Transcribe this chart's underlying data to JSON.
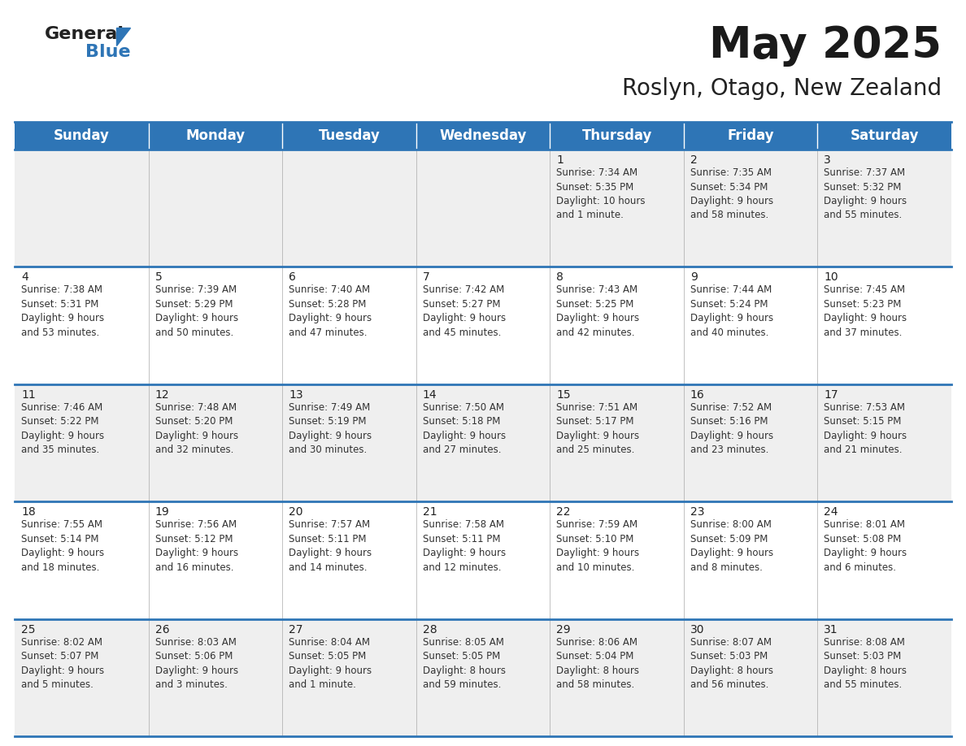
{
  "title": "May 2025",
  "subtitle": "Roslyn, Otago, New Zealand",
  "header_bg": "#2E75B6",
  "header_text": "#FFFFFF",
  "row_bg_light": "#EFEFEF",
  "row_bg_white": "#FFFFFF",
  "border_color": "#2E75B6",
  "day_headers": [
    "Sunday",
    "Monday",
    "Tuesday",
    "Wednesday",
    "Thursday",
    "Friday",
    "Saturday"
  ],
  "calendar": [
    [
      {
        "day": "",
        "info": ""
      },
      {
        "day": "",
        "info": ""
      },
      {
        "day": "",
        "info": ""
      },
      {
        "day": "",
        "info": ""
      },
      {
        "day": "1",
        "info": "Sunrise: 7:34 AM\nSunset: 5:35 PM\nDaylight: 10 hours\nand 1 minute."
      },
      {
        "day": "2",
        "info": "Sunrise: 7:35 AM\nSunset: 5:34 PM\nDaylight: 9 hours\nand 58 minutes."
      },
      {
        "day": "3",
        "info": "Sunrise: 7:37 AM\nSunset: 5:32 PM\nDaylight: 9 hours\nand 55 minutes."
      }
    ],
    [
      {
        "day": "4",
        "info": "Sunrise: 7:38 AM\nSunset: 5:31 PM\nDaylight: 9 hours\nand 53 minutes."
      },
      {
        "day": "5",
        "info": "Sunrise: 7:39 AM\nSunset: 5:29 PM\nDaylight: 9 hours\nand 50 minutes."
      },
      {
        "day": "6",
        "info": "Sunrise: 7:40 AM\nSunset: 5:28 PM\nDaylight: 9 hours\nand 47 minutes."
      },
      {
        "day": "7",
        "info": "Sunrise: 7:42 AM\nSunset: 5:27 PM\nDaylight: 9 hours\nand 45 minutes."
      },
      {
        "day": "8",
        "info": "Sunrise: 7:43 AM\nSunset: 5:25 PM\nDaylight: 9 hours\nand 42 minutes."
      },
      {
        "day": "9",
        "info": "Sunrise: 7:44 AM\nSunset: 5:24 PM\nDaylight: 9 hours\nand 40 minutes."
      },
      {
        "day": "10",
        "info": "Sunrise: 7:45 AM\nSunset: 5:23 PM\nDaylight: 9 hours\nand 37 minutes."
      }
    ],
    [
      {
        "day": "11",
        "info": "Sunrise: 7:46 AM\nSunset: 5:22 PM\nDaylight: 9 hours\nand 35 minutes."
      },
      {
        "day": "12",
        "info": "Sunrise: 7:48 AM\nSunset: 5:20 PM\nDaylight: 9 hours\nand 32 minutes."
      },
      {
        "day": "13",
        "info": "Sunrise: 7:49 AM\nSunset: 5:19 PM\nDaylight: 9 hours\nand 30 minutes."
      },
      {
        "day": "14",
        "info": "Sunrise: 7:50 AM\nSunset: 5:18 PM\nDaylight: 9 hours\nand 27 minutes."
      },
      {
        "day": "15",
        "info": "Sunrise: 7:51 AM\nSunset: 5:17 PM\nDaylight: 9 hours\nand 25 minutes."
      },
      {
        "day": "16",
        "info": "Sunrise: 7:52 AM\nSunset: 5:16 PM\nDaylight: 9 hours\nand 23 minutes."
      },
      {
        "day": "17",
        "info": "Sunrise: 7:53 AM\nSunset: 5:15 PM\nDaylight: 9 hours\nand 21 minutes."
      }
    ],
    [
      {
        "day": "18",
        "info": "Sunrise: 7:55 AM\nSunset: 5:14 PM\nDaylight: 9 hours\nand 18 minutes."
      },
      {
        "day": "19",
        "info": "Sunrise: 7:56 AM\nSunset: 5:12 PM\nDaylight: 9 hours\nand 16 minutes."
      },
      {
        "day": "20",
        "info": "Sunrise: 7:57 AM\nSunset: 5:11 PM\nDaylight: 9 hours\nand 14 minutes."
      },
      {
        "day": "21",
        "info": "Sunrise: 7:58 AM\nSunset: 5:11 PM\nDaylight: 9 hours\nand 12 minutes."
      },
      {
        "day": "22",
        "info": "Sunrise: 7:59 AM\nSunset: 5:10 PM\nDaylight: 9 hours\nand 10 minutes."
      },
      {
        "day": "23",
        "info": "Sunrise: 8:00 AM\nSunset: 5:09 PM\nDaylight: 9 hours\nand 8 minutes."
      },
      {
        "day": "24",
        "info": "Sunrise: 8:01 AM\nSunset: 5:08 PM\nDaylight: 9 hours\nand 6 minutes."
      }
    ],
    [
      {
        "day": "25",
        "info": "Sunrise: 8:02 AM\nSunset: 5:07 PM\nDaylight: 9 hours\nand 5 minutes."
      },
      {
        "day": "26",
        "info": "Sunrise: 8:03 AM\nSunset: 5:06 PM\nDaylight: 9 hours\nand 3 minutes."
      },
      {
        "day": "27",
        "info": "Sunrise: 8:04 AM\nSunset: 5:05 PM\nDaylight: 9 hours\nand 1 minute."
      },
      {
        "day": "28",
        "info": "Sunrise: 8:05 AM\nSunset: 5:05 PM\nDaylight: 8 hours\nand 59 minutes."
      },
      {
        "day": "29",
        "info": "Sunrise: 8:06 AM\nSunset: 5:04 PM\nDaylight: 8 hours\nand 58 minutes."
      },
      {
        "day": "30",
        "info": "Sunrise: 8:07 AM\nSunset: 5:03 PM\nDaylight: 8 hours\nand 56 minutes."
      },
      {
        "day": "31",
        "info": "Sunrise: 8:08 AM\nSunset: 5:03 PM\nDaylight: 8 hours\nand 55 minutes."
      }
    ]
  ],
  "logo_color_general": "#222222",
  "logo_color_blue": "#2E75B6",
  "title_fontsize": 38,
  "subtitle_fontsize": 20,
  "header_fontsize": 12,
  "day_fontsize": 10,
  "info_fontsize": 8.5
}
